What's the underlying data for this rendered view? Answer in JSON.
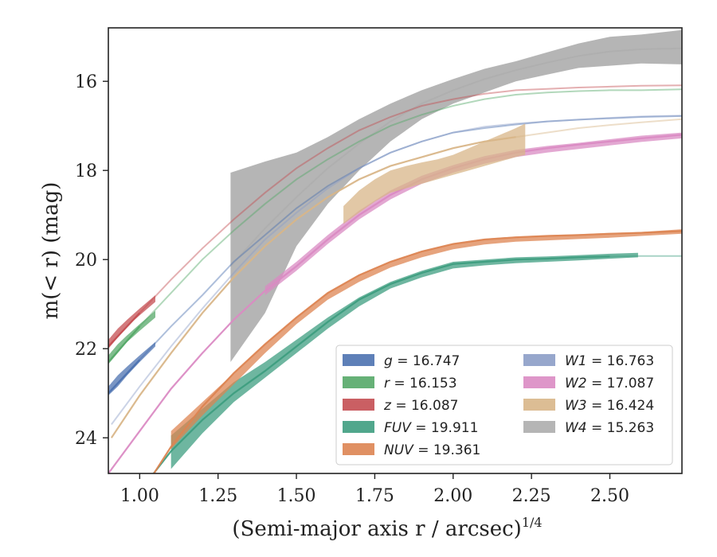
{
  "chart_data": {
    "type": "area",
    "xlabel": "(Semi-major axis r / arcsec)",
    "xlabel_exponent": "1/4",
    "ylabel": "m(< r) (mag)",
    "xlim": [
      0.9,
      2.73
    ],
    "ylim": [
      24.8,
      14.8
    ],
    "y_inverted": true,
    "x_ticks": [
      1.0,
      1.25,
      1.5,
      1.75,
      2.0,
      2.25,
      2.5
    ],
    "x_tick_labels": [
      "1.00",
      "1.25",
      "1.50",
      "1.75",
      "2.00",
      "2.25",
      "2.50"
    ],
    "y_ticks": [
      16,
      18,
      20,
      22,
      24
    ],
    "y_tick_labels": [
      "16",
      "18",
      "20",
      "22",
      "24"
    ],
    "grid": false,
    "legend_position": "lower-right",
    "legend_columns": 2,
    "series": [
      {
        "name": "g = 16.747",
        "label_var": "g",
        "label_val": "16.747",
        "color": "#4c72b0",
        "x": [
          0.9,
          1.0,
          1.1,
          1.2,
          1.3,
          1.4,
          1.5,
          1.6,
          1.7,
          1.8,
          1.9,
          2.0,
          2.1,
          2.2,
          2.3,
          2.4,
          2.5,
          2.6,
          2.73
        ],
        "y": [
          23.0,
          22.25,
          21.5,
          20.8,
          20.05,
          19.45,
          18.85,
          18.35,
          17.95,
          17.6,
          17.35,
          17.15,
          17.05,
          16.97,
          16.9,
          16.86,
          16.83,
          16.8,
          16.78
        ],
        "band_x": [
          0.9,
          0.93,
          0.96,
          1.0,
          1.05
        ],
        "band_y1": [
          22.85,
          22.6,
          22.4,
          22.15,
          21.85
        ],
        "band_y2": [
          23.05,
          22.85,
          22.6,
          22.3,
          21.95
        ],
        "band_end": 1.05
      },
      {
        "name": "r = 16.153",
        "label_var": "r",
        "label_val": "16.153",
        "color": "#55a868",
        "x": [
          0.9,
          1.0,
          1.1,
          1.2,
          1.3,
          1.4,
          1.5,
          1.6,
          1.7,
          1.8,
          1.9,
          2.0,
          2.1,
          2.2,
          2.3,
          2.4,
          2.5,
          2.6,
          2.73
        ],
        "y": [
          22.3,
          21.5,
          20.75,
          20.0,
          19.35,
          18.75,
          18.2,
          17.75,
          17.35,
          17.0,
          16.75,
          16.55,
          16.4,
          16.3,
          16.25,
          16.22,
          16.2,
          16.2,
          16.18
        ],
        "band_x": [
          0.9,
          0.93,
          0.96,
          1.0,
          1.05
        ],
        "band_y1": [
          22.15,
          21.9,
          21.7,
          21.45,
          21.15
        ],
        "band_y2": [
          22.35,
          22.1,
          21.85,
          21.6,
          21.3
        ],
        "band_end": 1.05
      },
      {
        "name": "z = 16.087",
        "label_var": "z",
        "label_val": "16.087",
        "color": "#c44e52",
        "x": [
          0.9,
          1.0,
          1.1,
          1.2,
          1.3,
          1.4,
          1.5,
          1.6,
          1.7,
          1.8,
          1.9,
          2.0,
          2.1,
          2.2,
          2.3,
          2.4,
          2.5,
          2.6,
          2.73
        ],
        "y": [
          21.95,
          21.2,
          20.45,
          19.75,
          19.1,
          18.5,
          17.95,
          17.5,
          17.1,
          16.8,
          16.55,
          16.4,
          16.28,
          16.2,
          16.17,
          16.14,
          16.12,
          16.1,
          16.09
        ],
        "band_x": [
          0.9,
          0.93,
          0.96,
          1.0,
          1.05
        ],
        "band_y1": [
          21.8,
          21.55,
          21.35,
          21.1,
          20.8
        ],
        "band_y2": [
          22.0,
          21.75,
          21.5,
          21.25,
          20.95
        ],
        "band_end": 1.05
      },
      {
        "name": "FUV = 19.911",
        "label_var": "FUV",
        "label_val": "19.911",
        "color": "#3e9d80",
        "x": [
          0.9,
          1.0,
          1.1,
          1.2,
          1.3,
          1.4,
          1.5,
          1.6,
          1.7,
          1.8,
          1.9,
          2.0,
          2.1,
          2.2,
          2.3,
          2.4,
          2.5,
          2.6,
          2.73
        ],
        "y": [
          26.0,
          25.2,
          24.3,
          23.6,
          23.0,
          22.5,
          21.95,
          21.4,
          20.9,
          20.55,
          20.3,
          20.1,
          20.05,
          20.0,
          19.98,
          19.95,
          19.93,
          19.92,
          19.92
        ],
        "band_x": [
          1.1,
          1.2,
          1.3,
          1.4,
          1.5,
          1.6,
          1.7,
          1.8,
          1.9,
          2.0,
          2.1,
          2.2,
          2.3,
          2.4,
          2.5,
          2.59
        ],
        "band_y1": [
          23.95,
          23.35,
          22.75,
          22.3,
          21.8,
          21.3,
          20.85,
          20.5,
          20.25,
          20.05,
          20.0,
          19.95,
          19.93,
          19.9,
          19.87,
          19.85
        ],
        "band_y2": [
          24.7,
          23.9,
          23.2,
          22.65,
          22.1,
          21.55,
          21.05,
          20.65,
          20.4,
          20.2,
          20.13,
          20.08,
          20.05,
          20.02,
          19.98,
          19.95
        ],
        "band_end": 2.59
      },
      {
        "name": "NUV = 19.361",
        "label_var": "NUV",
        "label_val": "19.361",
        "color": "#dd8452",
        "x": [
          0.9,
          1.0,
          1.1,
          1.2,
          1.3,
          1.4,
          1.5,
          1.6,
          1.7,
          1.8,
          1.9,
          2.0,
          2.1,
          2.2,
          2.3,
          2.4,
          2.5,
          2.6,
          2.73
        ],
        "y": [
          26.3,
          25.3,
          24.2,
          23.3,
          22.55,
          21.9,
          21.3,
          20.75,
          20.35,
          20.05,
          19.82,
          19.65,
          19.55,
          19.5,
          19.47,
          19.45,
          19.42,
          19.4,
          19.36
        ],
        "band_x": [
          1.1,
          1.2,
          1.3,
          1.4,
          1.5,
          1.6,
          1.7,
          1.8,
          1.9,
          2.0,
          2.1,
          2.2,
          2.3,
          2.4,
          2.5,
          2.6,
          2.73
        ],
        "band_y1": [
          23.85,
          23.2,
          22.55,
          21.9,
          21.3,
          20.75,
          20.35,
          20.05,
          19.82,
          19.65,
          19.55,
          19.5,
          19.47,
          19.45,
          19.42,
          19.38,
          19.32
        ],
        "band_y2": [
          24.25,
          23.5,
          22.8,
          22.1,
          21.45,
          20.9,
          20.5,
          20.18,
          19.95,
          19.77,
          19.66,
          19.6,
          19.57,
          19.54,
          19.51,
          19.47,
          19.42
        ],
        "band_end": 2.73
      },
      {
        "name": "W1 = 16.763",
        "label_var": "W1",
        "label_val": "16.763",
        "color": "#8c9dc7",
        "x": [
          0.91,
          1.0,
          1.1,
          1.2,
          1.3,
          1.4,
          1.5,
          1.6,
          1.7,
          1.8,
          1.9,
          2.0,
          2.1,
          2.2,
          2.3,
          2.4,
          2.5,
          2.6,
          2.73
        ],
        "y": [
          23.7,
          22.85,
          21.95,
          21.1,
          20.3,
          19.55,
          18.95,
          18.4,
          17.95,
          17.6,
          17.35,
          17.15,
          17.02,
          16.95,
          16.9,
          16.86,
          16.82,
          16.79,
          16.77
        ],
        "band_x": [],
        "band_y1": [],
        "band_y2": [],
        "band_end": 0.91
      },
      {
        "name": "W2 = 17.087",
        "label_var": "W2",
        "label_val": "17.087",
        "color": "#da8bc3",
        "x": [
          0.9,
          1.0,
          1.1,
          1.2,
          1.3,
          1.4,
          1.5,
          1.6,
          1.7,
          1.8,
          1.9,
          2.0,
          2.1,
          2.2,
          2.3,
          2.4,
          2.5,
          2.6,
          2.73
        ],
        "y": [
          24.8,
          23.85,
          22.9,
          22.1,
          21.35,
          20.7,
          20.15,
          19.55,
          19.0,
          18.55,
          18.2,
          17.95,
          17.75,
          17.6,
          17.5,
          17.42,
          17.35,
          17.28,
          17.2
        ],
        "band_x": [
          1.4,
          1.5,
          1.6,
          1.7,
          1.8,
          1.9,
          2.0,
          2.1,
          2.2,
          2.3,
          2.4,
          2.5,
          2.6,
          2.73
        ],
        "band_y1": [
          20.6,
          20.05,
          19.45,
          18.9,
          18.45,
          18.12,
          17.88,
          17.68,
          17.54,
          17.45,
          17.38,
          17.3,
          17.22,
          17.15
        ],
        "band_y2": [
          20.8,
          20.25,
          19.65,
          19.1,
          18.65,
          18.3,
          18.05,
          17.85,
          17.7,
          17.6,
          17.52,
          17.44,
          17.36,
          17.28
        ],
        "band_end": 2.73
      },
      {
        "name": "W3 = 16.424",
        "label_var": "W3",
        "label_val": "16.424",
        "color": "#d8b688",
        "x": [
          0.91,
          1.0,
          1.1,
          1.2,
          1.3,
          1.4,
          1.5,
          1.6,
          1.7,
          1.8,
          1.9,
          2.0,
          2.1,
          2.2,
          2.3,
          2.4,
          2.5,
          2.6,
          2.73
        ],
        "y": [
          24.0,
          23.05,
          22.1,
          21.2,
          20.4,
          19.7,
          19.1,
          18.6,
          18.2,
          17.9,
          17.7,
          17.5,
          17.35,
          17.25,
          17.15,
          17.05,
          16.98,
          16.92,
          16.85
        ],
        "band_x": [
          1.65,
          1.7,
          1.75,
          1.8,
          1.85,
          1.9,
          1.95,
          2.0,
          2.05,
          2.1,
          2.15,
          2.2,
          2.23
        ],
        "band_y1": [
          18.8,
          18.45,
          18.2,
          18.0,
          17.9,
          17.82,
          17.75,
          17.65,
          17.5,
          17.35,
          17.2,
          17.05,
          16.95
        ],
        "band_y2": [
          19.2,
          18.95,
          18.7,
          18.5,
          18.4,
          18.3,
          18.2,
          18.1,
          18.0,
          17.9,
          17.8,
          17.7,
          17.65
        ],
        "band_end": 2.23
      },
      {
        "name": "W4 = 15.263",
        "label_var": "W4",
        "label_val": "15.263",
        "color": "#a8a8a8",
        "x": [
          1.29,
          1.4,
          1.5,
          1.6,
          1.7,
          1.8,
          1.9,
          2.0,
          2.1,
          2.2,
          2.3,
          2.4,
          2.5,
          2.6,
          2.73
        ],
        "y": [
          20.15,
          19.3,
          18.6,
          17.95,
          17.4,
          16.9,
          16.5,
          16.2,
          15.95,
          15.75,
          15.58,
          15.43,
          15.33,
          15.28,
          15.26
        ],
        "band_x": [
          1.29,
          1.4,
          1.5,
          1.6,
          1.7,
          1.8,
          1.9,
          2.0,
          2.1,
          2.2,
          2.3,
          2.4,
          2.5,
          2.6,
          2.73
        ],
        "band_y1": [
          18.05,
          17.8,
          17.6,
          17.25,
          16.85,
          16.5,
          16.2,
          15.95,
          15.72,
          15.55,
          15.35,
          15.15,
          15.0,
          14.95,
          14.85
        ],
        "band_y2": [
          22.3,
          21.2,
          19.7,
          18.75,
          18.0,
          17.35,
          16.85,
          16.5,
          16.25,
          16.0,
          15.85,
          15.7,
          15.65,
          15.6,
          15.62
        ],
        "band_end": 2.73
      }
    ]
  }
}
